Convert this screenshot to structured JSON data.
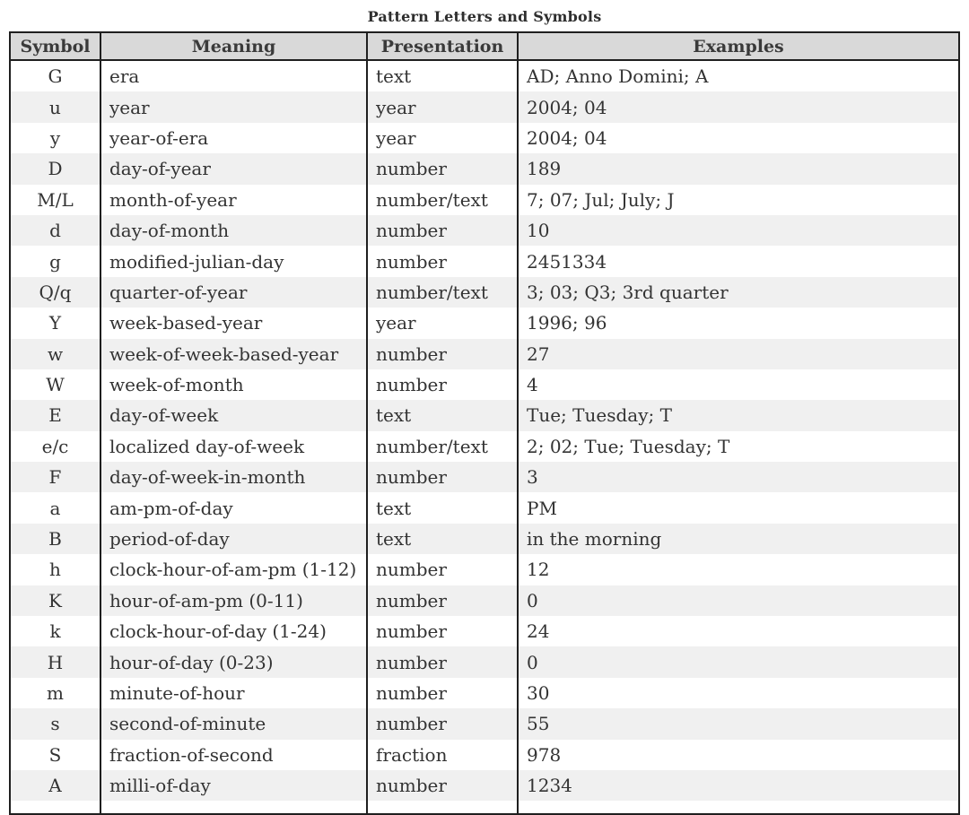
{
  "title": "Pattern Letters and Symbols",
  "table": {
    "columns": [
      "Symbol",
      "Meaning",
      "Presentation",
      "Examples"
    ],
    "rows": [
      {
        "symbol": "G",
        "meaning": "era",
        "presentation": "text",
        "examples": "AD; Anno Domini; A"
      },
      {
        "symbol": "u",
        "meaning": "year",
        "presentation": "year",
        "examples": "2004; 04"
      },
      {
        "symbol": "y",
        "meaning": "year-of-era",
        "presentation": "year",
        "examples": "2004; 04"
      },
      {
        "symbol": "D",
        "meaning": "day-of-year",
        "presentation": "number",
        "examples": "189"
      },
      {
        "symbol": "M/L",
        "meaning": "month-of-year",
        "presentation": "number/text",
        "examples": "7; 07; Jul; July; J"
      },
      {
        "symbol": "d",
        "meaning": "day-of-month",
        "presentation": "number",
        "examples": "10"
      },
      {
        "symbol": "g",
        "meaning": "modified-julian-day",
        "presentation": "number",
        "examples": "2451334"
      },
      {
        "symbol": "Q/q",
        "meaning": "quarter-of-year",
        "presentation": "number/text",
        "examples": "3; 03; Q3; 3rd quarter"
      },
      {
        "symbol": "Y",
        "meaning": "week-based-year",
        "presentation": "year",
        "examples": "1996; 96"
      },
      {
        "symbol": "w",
        "meaning": "week-of-week-based-year",
        "presentation": "number",
        "examples": "27"
      },
      {
        "symbol": "W",
        "meaning": "week-of-month",
        "presentation": "number",
        "examples": "4"
      },
      {
        "symbol": "E",
        "meaning": "day-of-week",
        "presentation": "text",
        "examples": "Tue; Tuesday; T"
      },
      {
        "symbol": "e/c",
        "meaning": "localized day-of-week",
        "presentation": "number/text",
        "examples": "2; 02; Tue; Tuesday; T"
      },
      {
        "symbol": "F",
        "meaning": "day-of-week-in-month",
        "presentation": "number",
        "examples": "3"
      },
      {
        "symbol": "a",
        "meaning": "am-pm-of-day",
        "presentation": "text",
        "examples": "PM"
      },
      {
        "symbol": "B",
        "meaning": "period-of-day",
        "presentation": "text",
        "examples": "in the morning"
      },
      {
        "symbol": "h",
        "meaning": "clock-hour-of-am-pm (1-12)",
        "presentation": "number",
        "examples": "12"
      },
      {
        "symbol": "K",
        "meaning": "hour-of-am-pm (0-11)",
        "presentation": "number",
        "examples": "0"
      },
      {
        "symbol": "k",
        "meaning": "clock-hour-of-day (1-24)",
        "presentation": "number",
        "examples": "24"
      },
      {
        "symbol": "H",
        "meaning": "hour-of-day (0-23)",
        "presentation": "number",
        "examples": "0"
      },
      {
        "symbol": "m",
        "meaning": "minute-of-hour",
        "presentation": "number",
        "examples": "30"
      },
      {
        "symbol": "s",
        "meaning": "second-of-minute",
        "presentation": "number",
        "examples": "55"
      },
      {
        "symbol": "S",
        "meaning": "fraction-of-second",
        "presentation": "fraction",
        "examples": "978"
      },
      {
        "symbol": "A",
        "meaning": "milli-of-day",
        "presentation": "number",
        "examples": "1234"
      }
    ]
  },
  "colors": {
    "header_bg": "#d9d9d9",
    "stripe_bg": "#f0f0f0",
    "row_bg": "#ffffff",
    "border": "#1f1f1f",
    "text": "#333333"
  }
}
